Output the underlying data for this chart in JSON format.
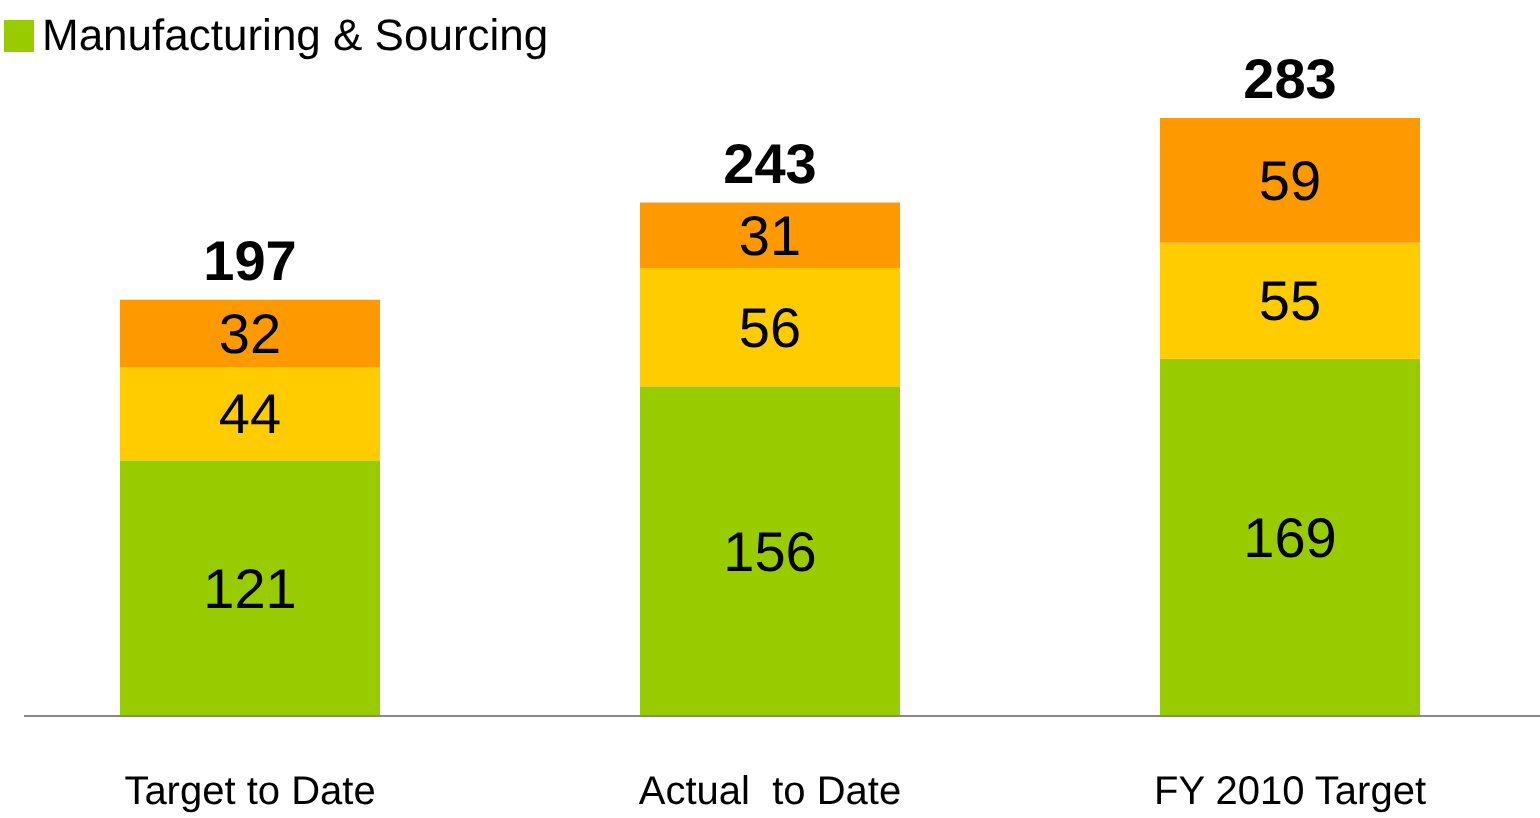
{
  "chart_data": {
    "type": "bar",
    "stacked": true,
    "categories": [
      "Target to Date",
      "Actual  to Date",
      "FY 2010 Target"
    ],
    "series": [
      {
        "name": "Manufacturing & Sourcing",
        "color": "#99cc00",
        "values": [
          121,
          156,
          169
        ]
      },
      {
        "color": "#ffcc00",
        "values": [
          44,
          56,
          55
        ]
      },
      {
        "color": "#ff9900",
        "values": [
          32,
          31,
          59
        ]
      }
    ],
    "totals": [
      "197",
      "243",
      "283"
    ],
    "data_labels": true,
    "legend": "top left"
  }
}
